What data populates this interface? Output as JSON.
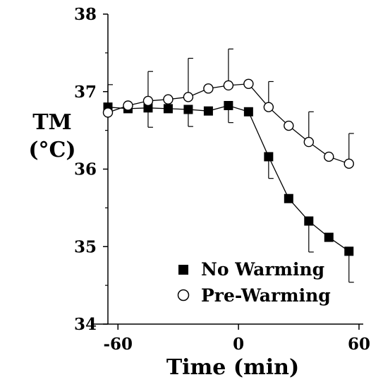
{
  "chart_data": {
    "type": "line",
    "title": "",
    "xlabel": "Time (min)",
    "ylabel": "TM",
    "ylabel_unit": "(°C)",
    "xlim": [
      -65,
      60
    ],
    "ylim": [
      34,
      38
    ],
    "x_ticks": [
      -60,
      0,
      60
    ],
    "x_tick_labels": [
      "-60",
      "0",
      "60"
    ],
    "y_ticks": [
      34,
      35,
      36,
      37,
      38
    ],
    "y_tick_labels": [
      "34",
      "35",
      "36",
      "37",
      "38"
    ],
    "grid": false,
    "legend_position": "bottom-right",
    "series": [
      {
        "name": "No Warming",
        "marker": "filled-square",
        "color": "#000000",
        "x": [
          -65,
          -55,
          -45,
          -35,
          -25,
          -15,
          -5,
          5,
          15,
          25,
          35,
          45,
          55
        ],
        "y": [
          36.8,
          36.78,
          36.79,
          36.78,
          36.77,
          36.75,
          36.82,
          36.74,
          36.16,
          35.62,
          35.33,
          35.12,
          34.94
        ],
        "error_dir": "down",
        "error": [
          0,
          0,
          0.25,
          0,
          0.22,
          0,
          0.22,
          0,
          0.28,
          0,
          0.4,
          0,
          0.4
        ]
      },
      {
        "name": "Pre-Warming",
        "marker": "open-circle",
        "color": "#000000",
        "x": [
          -65,
          -55,
          -45,
          -35,
          -25,
          -15,
          -5,
          5,
          15,
          25,
          35,
          45,
          55
        ],
        "y": [
          36.73,
          36.82,
          36.88,
          36.9,
          36.93,
          37.04,
          37.08,
          37.1,
          36.8,
          36.56,
          36.35,
          36.16,
          36.07
        ],
        "error_dir": "up",
        "error": [
          0.36,
          0,
          0.38,
          0,
          0.5,
          0,
          0.47,
          0,
          0.33,
          0,
          0.39,
          0,
          0.39
        ]
      }
    ]
  }
}
